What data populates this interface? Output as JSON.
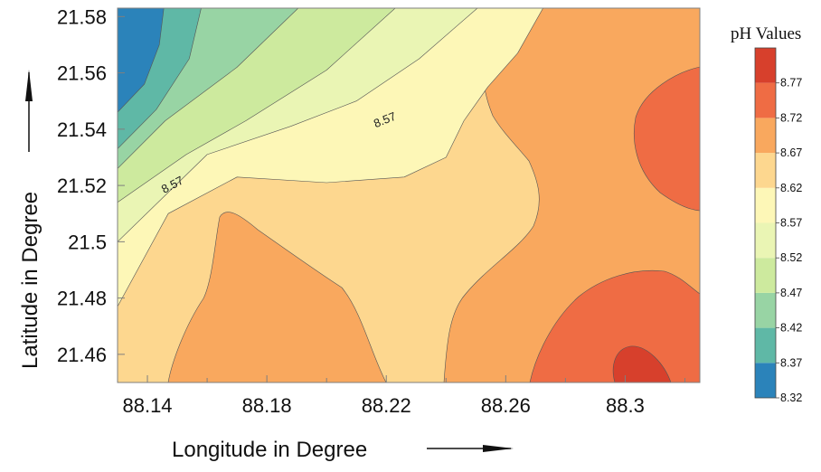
{
  "chart_data": {
    "type": "contour",
    "title": "",
    "xlabel": "Longitude in Degree",
    "ylabel": "Latitude in Degree",
    "xlim": [
      88.13,
      88.325
    ],
    "ylim": [
      21.45,
      21.583
    ],
    "x_ticks": [
      "88.14",
      "88.18",
      "88.22",
      "88.26",
      "88.3"
    ],
    "y_ticks": [
      "21.46",
      "21.48",
      "21.5",
      "21.52",
      "21.54",
      "21.56",
      "21.58"
    ],
    "grid": false,
    "legend": {
      "title": "pH Values",
      "placement": "right",
      "levels": [
        "8.32",
        "8.37",
        "8.42",
        "8.47",
        "8.52",
        "8.57",
        "8.62",
        "8.67",
        "8.72",
        "8.77"
      ],
      "colors": [
        "#2b83ba",
        "#5fb8a6",
        "#98d4a4",
        "#cdea9e",
        "#eaf5b4",
        "#fdf7b7",
        "#fdd78f",
        "#f9a85e",
        "#ef6c44",
        "#d7402c"
      ]
    },
    "contour_labels": [
      {
        "text": "8.57",
        "x": 88.149,
        "y": 21.519
      },
      {
        "text": "8.57",
        "x": 88.22,
        "y": 21.542
      }
    ],
    "regions": [
      {
        "level": "8.32",
        "points": [
          [
            88.13,
            21.583
          ],
          [
            88.1455,
            21.583
          ],
          [
            88.144,
            21.57
          ],
          [
            88.139,
            21.556
          ],
          [
            88.13,
            21.546
          ]
        ]
      },
      {
        "level": "8.37",
        "points": [
          [
            88.13,
            21.583
          ],
          [
            88.158,
            21.583
          ],
          [
            88.154,
            21.565
          ],
          [
            88.143,
            21.547
          ],
          [
            88.13,
            21.533
          ]
        ]
      },
      {
        "level": "8.42",
        "points": [
          [
            88.13,
            21.583
          ],
          [
            88.1905,
            21.583
          ],
          [
            88.17,
            21.562
          ],
          [
            88.146,
            21.543
          ],
          [
            88.13,
            21.526
          ]
        ]
      },
      {
        "level": "8.47",
        "points": [
          [
            88.13,
            21.583
          ],
          [
            88.223,
            21.583
          ],
          [
            88.2,
            21.561
          ],
          [
            88.173,
            21.543
          ],
          [
            88.153,
            21.531
          ],
          [
            88.13,
            21.514
          ]
        ]
      },
      {
        "level": "8.52",
        "points": [
          [
            88.13,
            21.583
          ],
          [
            88.2505,
            21.583
          ],
          [
            88.231,
            21.565
          ],
          [
            88.21,
            21.55
          ],
          [
            88.188,
            21.541
          ],
          [
            88.16,
            21.531
          ],
          [
            88.13,
            21.5
          ]
        ]
      },
      {
        "level": "8.57",
        "points": [
          [
            88.13,
            21.583
          ],
          [
            88.2725,
            21.583
          ],
          [
            88.264,
            21.567
          ],
          [
            88.254,
            21.555
          ],
          [
            88.246,
            21.543
          ],
          [
            88.24,
            21.53
          ],
          [
            88.226,
            21.523
          ],
          [
            88.2,
            21.521
          ],
          [
            88.17,
            21.523
          ],
          [
            88.147,
            21.51
          ],
          [
            88.13,
            21.477
          ]
        ]
      }
    ]
  }
}
